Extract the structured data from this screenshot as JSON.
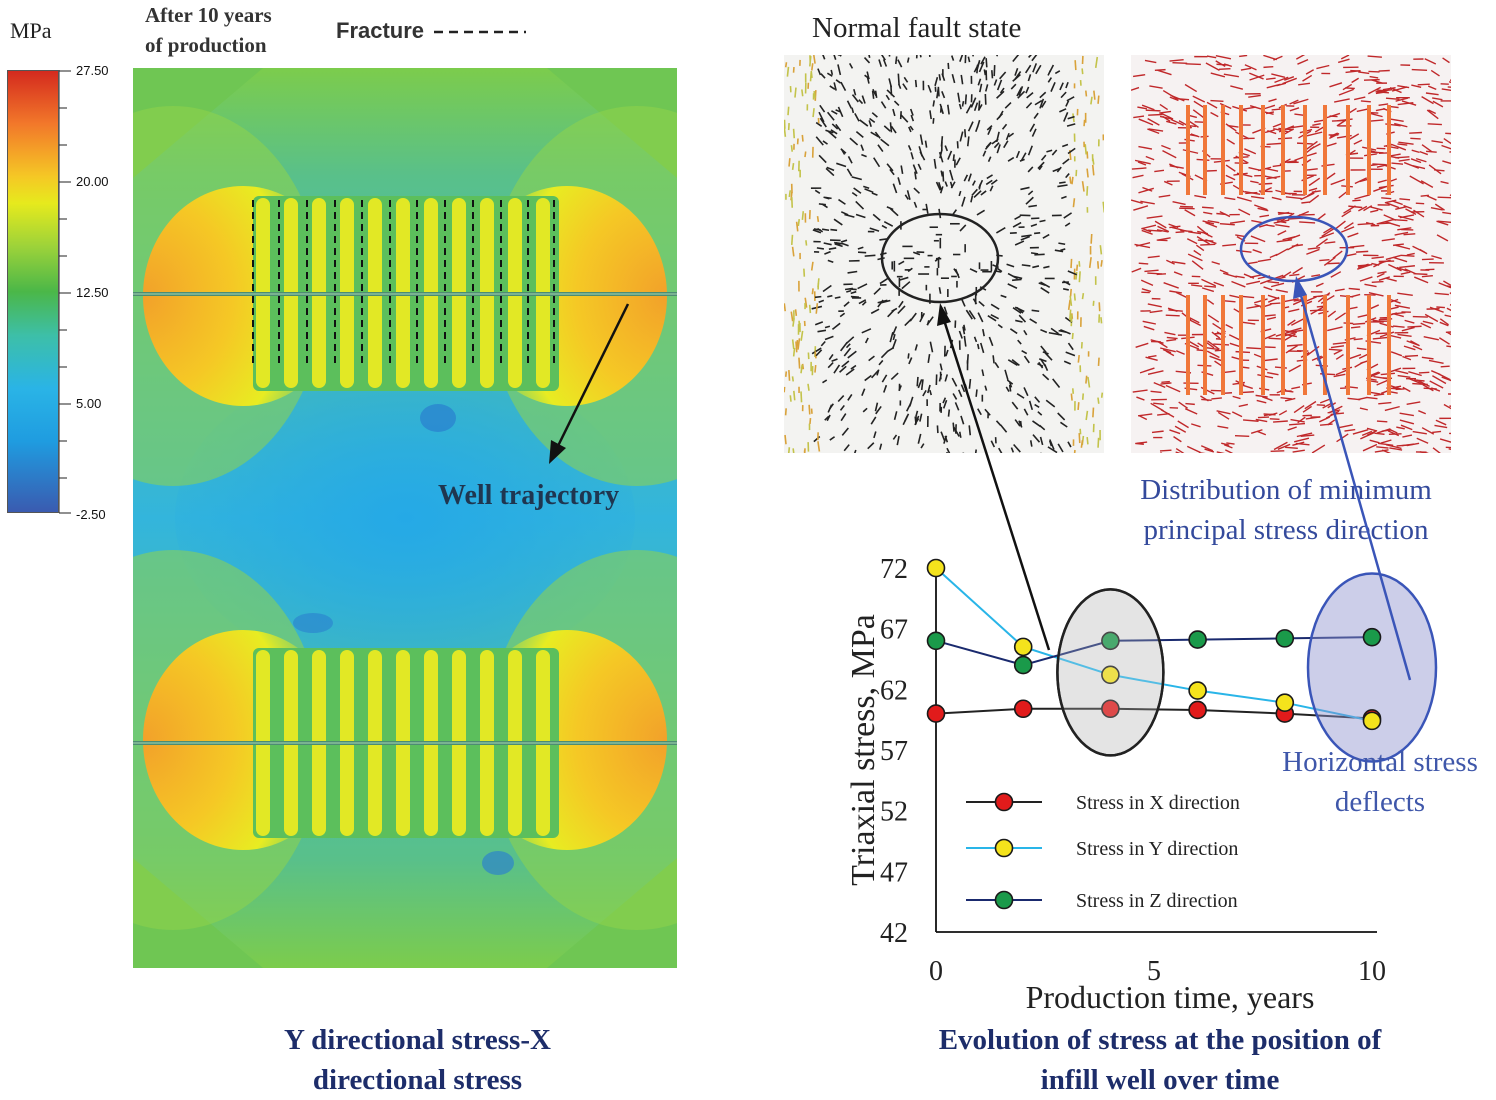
{
  "left_panel": {
    "unit_label": "MPa",
    "header_time": "After 10 years\nof production",
    "legend_fracture_label": "Fracture",
    "colorbar": {
      "ticks": [
        "27.50",
        "20.00",
        "12.50",
        "5.00",
        "-2.50"
      ],
      "colors": [
        "#d42a1e",
        "#f2a12a",
        "#f4ec1f",
        "#4bb748",
        "#2ab4e6",
        "#3a5bb0"
      ]
    },
    "well_label": "Well trajectory",
    "caption": "Y directional stress-X\ndirectional stress"
  },
  "right_panel": {
    "fault_title": "Normal fault state",
    "distribution_label": "Distribution of minimum\nprincipal stress direction",
    "horizontal_label": "Horizontal stress\ndeflects",
    "caption": "Evolution of stress at the position of\ninfill well over time"
  },
  "chart_data": {
    "type": "line",
    "xlabel": "Production time, years",
    "ylabel": "Triaxial stress, MPa",
    "xlim": [
      0,
      10
    ],
    "ylim": [
      42,
      72
    ],
    "xticks": [
      "0",
      "5",
      "10"
    ],
    "yticks": [
      "72",
      "67",
      "62",
      "57",
      "52",
      "47",
      "42"
    ],
    "x": [
      0,
      2,
      4,
      6,
      8,
      10
    ],
    "series": [
      {
        "name": "Stress in X direction",
        "color": "#e11b1b",
        "line": "#222222",
        "values": [
          60.0,
          60.4,
          60.4,
          60.3,
          60.0,
          59.6
        ]
      },
      {
        "name": "Stress in Y direction",
        "color": "#f4e31c",
        "line": "#29b5e8",
        "values": [
          72.0,
          65.5,
          63.2,
          61.9,
          60.9,
          59.4
        ]
      },
      {
        "name": "Stress in Z direction",
        "color": "#1a9a4a",
        "line": "#1a2a6e",
        "values": [
          66.0,
          64.0,
          66.0,
          66.1,
          66.2,
          66.3
        ]
      }
    ]
  }
}
